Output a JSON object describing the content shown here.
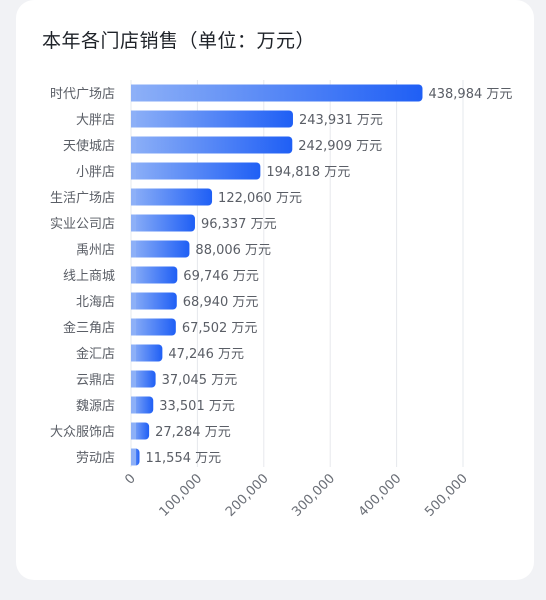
{
  "card": {
    "title": "本年各门店销售（单位：万元）"
  },
  "chart_data": {
    "type": "bar",
    "orientation": "horizontal",
    "title": "本年各门店销售（单位：万元）",
    "xlabel": "",
    "ylabel": "",
    "xlim": [
      0,
      500000
    ],
    "xticks": [
      0,
      100000,
      200000,
      300000,
      400000,
      500000
    ],
    "xtick_labels": [
      "0",
      "100,000",
      "200,000",
      "300,000",
      "400,000",
      "500,000"
    ],
    "grid": true,
    "unit_suffix": " 万元",
    "categories": [
      "时代广场店",
      "大胖店",
      "天使城店",
      "小胖店",
      "生活广场店",
      "实业公司店",
      "禹州店",
      "线上商城",
      "北海店",
      "金三角店",
      "金汇店",
      "云鼎店",
      "魏源店",
      "大众服饰店",
      "劳动店"
    ],
    "values": [
      438984,
      243931,
      242909,
      194818,
      122060,
      96337,
      88006,
      69746,
      68940,
      67502,
      47246,
      37045,
      33501,
      27284,
      11554
    ],
    "value_labels": [
      "438,984 万元",
      "243,931 万元",
      "242,909 万元",
      "194,818 万元",
      "122,060 万元",
      "96,337 万元",
      "88,006 万元",
      "69,746 万元",
      "68,940 万元",
      "67,502 万元",
      "47,246 万元",
      "37,045 万元",
      "33,501 万元",
      "27,284 万元",
      "11,554 万元"
    ],
    "colors": {
      "bar_start": "#8db0f7",
      "bar_end": "#1f5ff5"
    }
  }
}
